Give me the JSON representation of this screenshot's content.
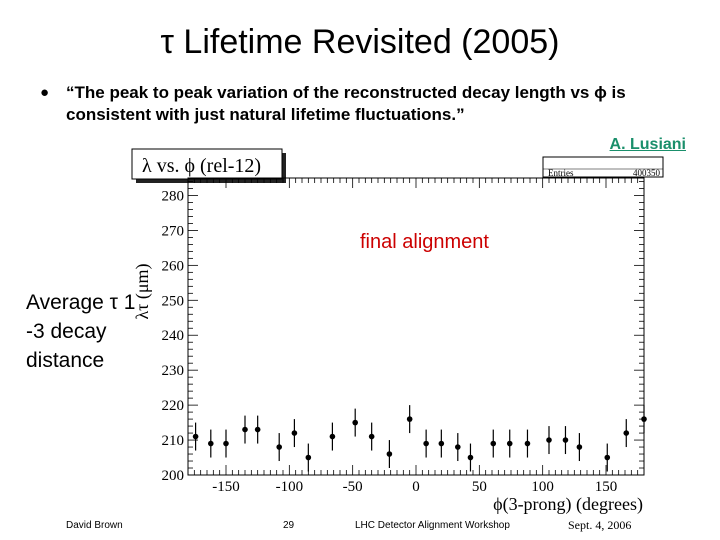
{
  "slide": {
    "title": "τ Lifetime Revisited (2005)",
    "bullet_symbol": "●",
    "quote": "“The peak to peak variation of the reconstructed decay length vs ϕ is consistent with just natural lifetime fluctuations.”",
    "author": "A. Lusiani",
    "side_note": "Average τ 1 -3 decay distance"
  },
  "footer": {
    "author": "David Brown",
    "page": "29",
    "event": "LHC Detector Alignment Workshop",
    "date": "Sept. 4, 2006"
  },
  "chart_data": {
    "type": "scatter",
    "title": "λ vs. ϕ (rel-12)",
    "stats_box": {
      "label": "Entries",
      "value": "400350"
    },
    "annotation": "final alignment",
    "annotation_color": "#cc0000",
    "xlabel": "ϕ(3-prong) (degrees)",
    "ylabel": "λτ (μm)",
    "xlim": [
      -180,
      180
    ],
    "ylim": [
      200,
      285
    ],
    "xticks": [
      -150,
      -100,
      -50,
      0,
      50,
      100,
      150
    ],
    "yticks": [
      200,
      210,
      220,
      230,
      240,
      250,
      260,
      270,
      280
    ],
    "grid": false,
    "points": [
      {
        "x": -174,
        "y": 211,
        "err": 4
      },
      {
        "x": -162,
        "y": 209,
        "err": 4
      },
      {
        "x": -150,
        "y": 209,
        "err": 4
      },
      {
        "x": -135,
        "y": 213,
        "err": 4
      },
      {
        "x": -125,
        "y": 213,
        "err": 4
      },
      {
        "x": -108,
        "y": 208,
        "err": 4
      },
      {
        "x": -96,
        "y": 212,
        "err": 4
      },
      {
        "x": -85,
        "y": 205,
        "err": 4
      },
      {
        "x": -66,
        "y": 211,
        "err": 4
      },
      {
        "x": -48,
        "y": 215,
        "err": 4
      },
      {
        "x": -35,
        "y": 211,
        "err": 4
      },
      {
        "x": -21,
        "y": 206,
        "err": 4
      },
      {
        "x": -5,
        "y": 216,
        "err": 4
      },
      {
        "x": 8,
        "y": 209,
        "err": 4
      },
      {
        "x": 20,
        "y": 209,
        "err": 4
      },
      {
        "x": 33,
        "y": 208,
        "err": 4
      },
      {
        "x": 43,
        "y": 205,
        "err": 4
      },
      {
        "x": 61,
        "y": 209,
        "err": 4
      },
      {
        "x": 74,
        "y": 209,
        "err": 4
      },
      {
        "x": 88,
        "y": 209,
        "err": 4
      },
      {
        "x": 105,
        "y": 210,
        "err": 4
      },
      {
        "x": 118,
        "y": 210,
        "err": 4
      },
      {
        "x": 129,
        "y": 208,
        "err": 4
      },
      {
        "x": 151,
        "y": 205,
        "err": 4
      },
      {
        "x": 166,
        "y": 212,
        "err": 4
      },
      {
        "x": 180,
        "y": 216,
        "err": 4
      }
    ]
  }
}
